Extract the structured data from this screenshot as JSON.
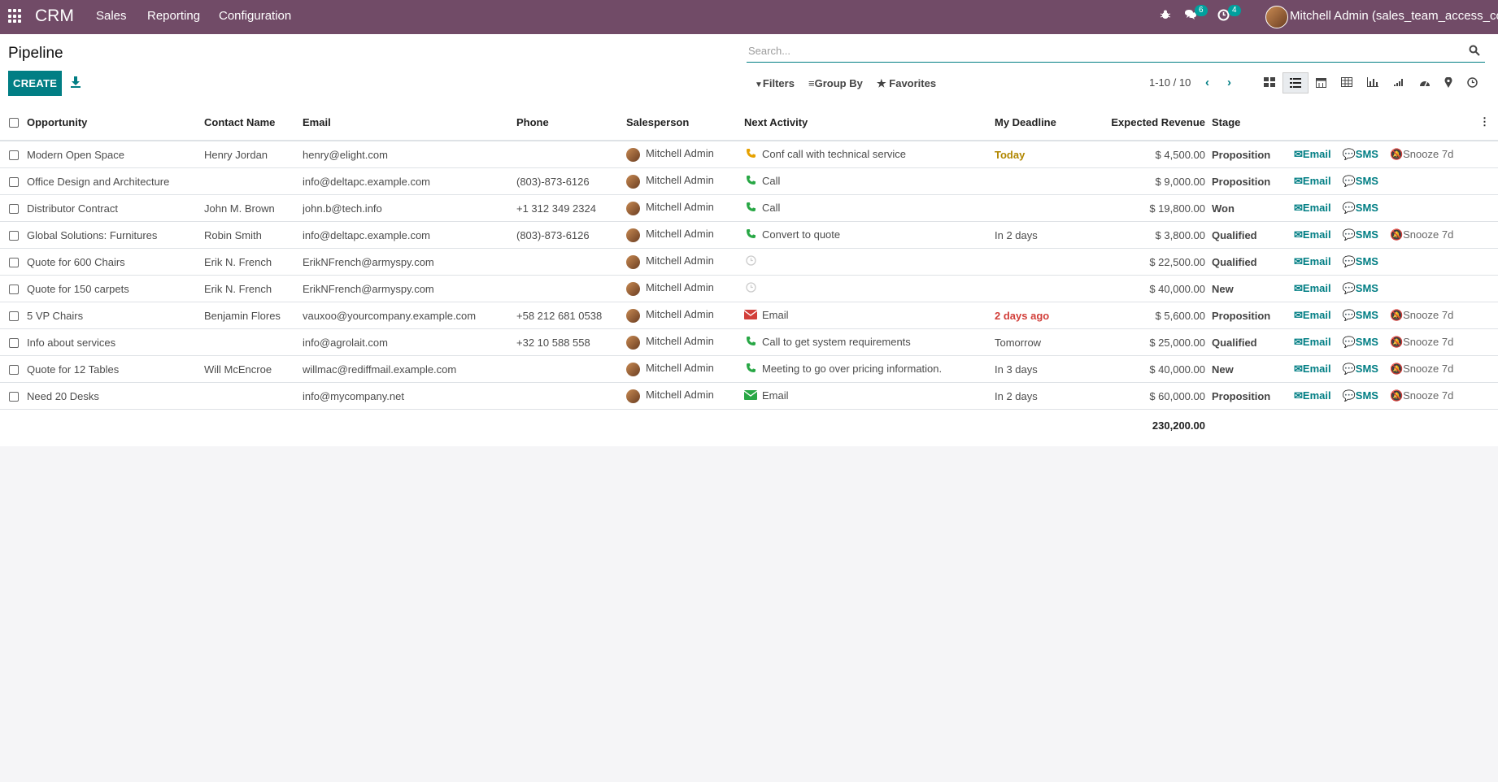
{
  "app": {
    "name": "CRM",
    "menu": [
      "Sales",
      "Reporting",
      "Configuration"
    ]
  },
  "systray": {
    "messages_count": "6",
    "activities_count": "4",
    "user": "Mitchell Admin (sales_team_access_co..."
  },
  "page": {
    "title": "Pipeline",
    "create_label": "CREATE"
  },
  "search": {
    "placeholder": "Search..."
  },
  "filters": {
    "filters_label": "Filters",
    "groupby_label": "Group By",
    "favorites_label": "Favorites"
  },
  "pager": {
    "value": "1-10 / 10"
  },
  "columns": [
    "Opportunity",
    "Contact Name",
    "Email",
    "Phone",
    "Salesperson",
    "Next Activity",
    "My Deadline",
    "Expected Revenue",
    "Stage"
  ],
  "rows": [
    {
      "opportunity": "Modern Open Space",
      "contact": "Henry Jordan",
      "email": "henry@elight.com",
      "phone": "",
      "salesperson": "Mitchell Admin",
      "activity_icon": "phone-icon",
      "activity_color": "#e6a100",
      "activity": "Conf call with technical service",
      "deadline": "Today",
      "deadline_status": "today",
      "revenue": "$ 4,500.00",
      "stage": "Proposition",
      "snooze": "Snooze 7d"
    },
    {
      "opportunity": "Office Design and Architecture",
      "contact": "",
      "email": "info@deltapc.example.com",
      "phone": "(803)-873-6126",
      "salesperson": "Mitchell Admin",
      "activity_icon": "phone-icon",
      "activity_color": "#28a745",
      "activity": "Call",
      "deadline": "",
      "deadline_status": "",
      "revenue": "$ 9,000.00",
      "stage": "Proposition",
      "snooze": ""
    },
    {
      "opportunity": "Distributor Contract",
      "contact": "John M. Brown",
      "email": "john.b@tech.info",
      "phone": "+1 312 349 2324",
      "salesperson": "Mitchell Admin",
      "activity_icon": "phone-icon",
      "activity_color": "#28a745",
      "activity": "Call",
      "deadline": "",
      "deadline_status": "",
      "revenue": "$ 19,800.00",
      "stage": "Won",
      "snooze": ""
    },
    {
      "opportunity": "Global Solutions: Furnitures",
      "contact": "Robin Smith",
      "email": "info@deltapc.example.com",
      "phone": "(803)-873-6126",
      "salesperson": "Mitchell Admin",
      "activity_icon": "phone-icon",
      "activity_color": "#28a745",
      "activity": "Convert to quote",
      "deadline": "In 2 days",
      "deadline_status": "",
      "revenue": "$ 3,800.00",
      "stage": "Qualified",
      "snooze": "Snooze 7d"
    },
    {
      "opportunity": "Quote for 600 Chairs",
      "contact": "Erik N. French",
      "email": "ErikNFrench@armyspy.com",
      "phone": "",
      "salesperson": "Mitchell Admin",
      "activity_icon": "clock-icon",
      "activity_color": "#cccccc",
      "activity": "",
      "deadline": "",
      "deadline_status": "",
      "revenue": "$ 22,500.00",
      "stage": "Qualified",
      "snooze": ""
    },
    {
      "opportunity": "Quote for 150 carpets",
      "contact": "Erik N. French",
      "email": "ErikNFrench@armyspy.com",
      "phone": "",
      "salesperson": "Mitchell Admin",
      "activity_icon": "clock-icon",
      "activity_color": "#cccccc",
      "activity": "",
      "deadline": "",
      "deadline_status": "",
      "revenue": "$ 40,000.00",
      "stage": "New",
      "snooze": ""
    },
    {
      "opportunity": "5 VP Chairs",
      "contact": "Benjamin Flores",
      "email": "vauxoo@yourcompany.example.com",
      "phone": "+58 212 681 0538",
      "salesperson": "Mitchell Admin",
      "activity_icon": "envelope-icon",
      "activity_color": "#d23f3a",
      "activity": "Email",
      "deadline": "2 days ago",
      "deadline_status": "overdue",
      "revenue": "$ 5,600.00",
      "stage": "Proposition",
      "snooze": "Snooze 7d"
    },
    {
      "opportunity": "Info about services",
      "contact": "",
      "email": "info@agrolait.com",
      "phone": "+32 10 588 558",
      "salesperson": "Mitchell Admin",
      "activity_icon": "phone-icon",
      "activity_color": "#28a745",
      "activity": "Call to get system requirements",
      "deadline": "Tomorrow",
      "deadline_status": "",
      "revenue": "$ 25,000.00",
      "stage": "Qualified",
      "snooze": "Snooze 7d"
    },
    {
      "opportunity": "Quote for 12 Tables",
      "contact": "Will McEncroe",
      "email": "willmac@rediffmail.example.com",
      "phone": "",
      "salesperson": "Mitchell Admin",
      "activity_icon": "phone-icon",
      "activity_color": "#28a745",
      "activity": "Meeting to go over pricing information.",
      "deadline": "In 3 days",
      "deadline_status": "",
      "revenue": "$ 40,000.00",
      "stage": "New",
      "snooze": "Snooze 7d"
    },
    {
      "opportunity": "Need 20 Desks",
      "contact": "",
      "email": "info@mycompany.net",
      "phone": "",
      "salesperson": "Mitchell Admin",
      "activity_icon": "envelope-icon",
      "activity_color": "#28a745",
      "activity": "Email",
      "deadline": "In 2 days",
      "deadline_status": "",
      "revenue": "$ 60,000.00",
      "stage": "Proposition",
      "snooze": "Snooze 7d"
    }
  ],
  "row_actions": {
    "email": "Email",
    "sms": "SMS"
  },
  "total_revenue": "230,200.00",
  "colors": {
    "brand": "#714B67",
    "accent": "#017E84",
    "today": "#b18700",
    "overdue": "#d23f3a"
  }
}
